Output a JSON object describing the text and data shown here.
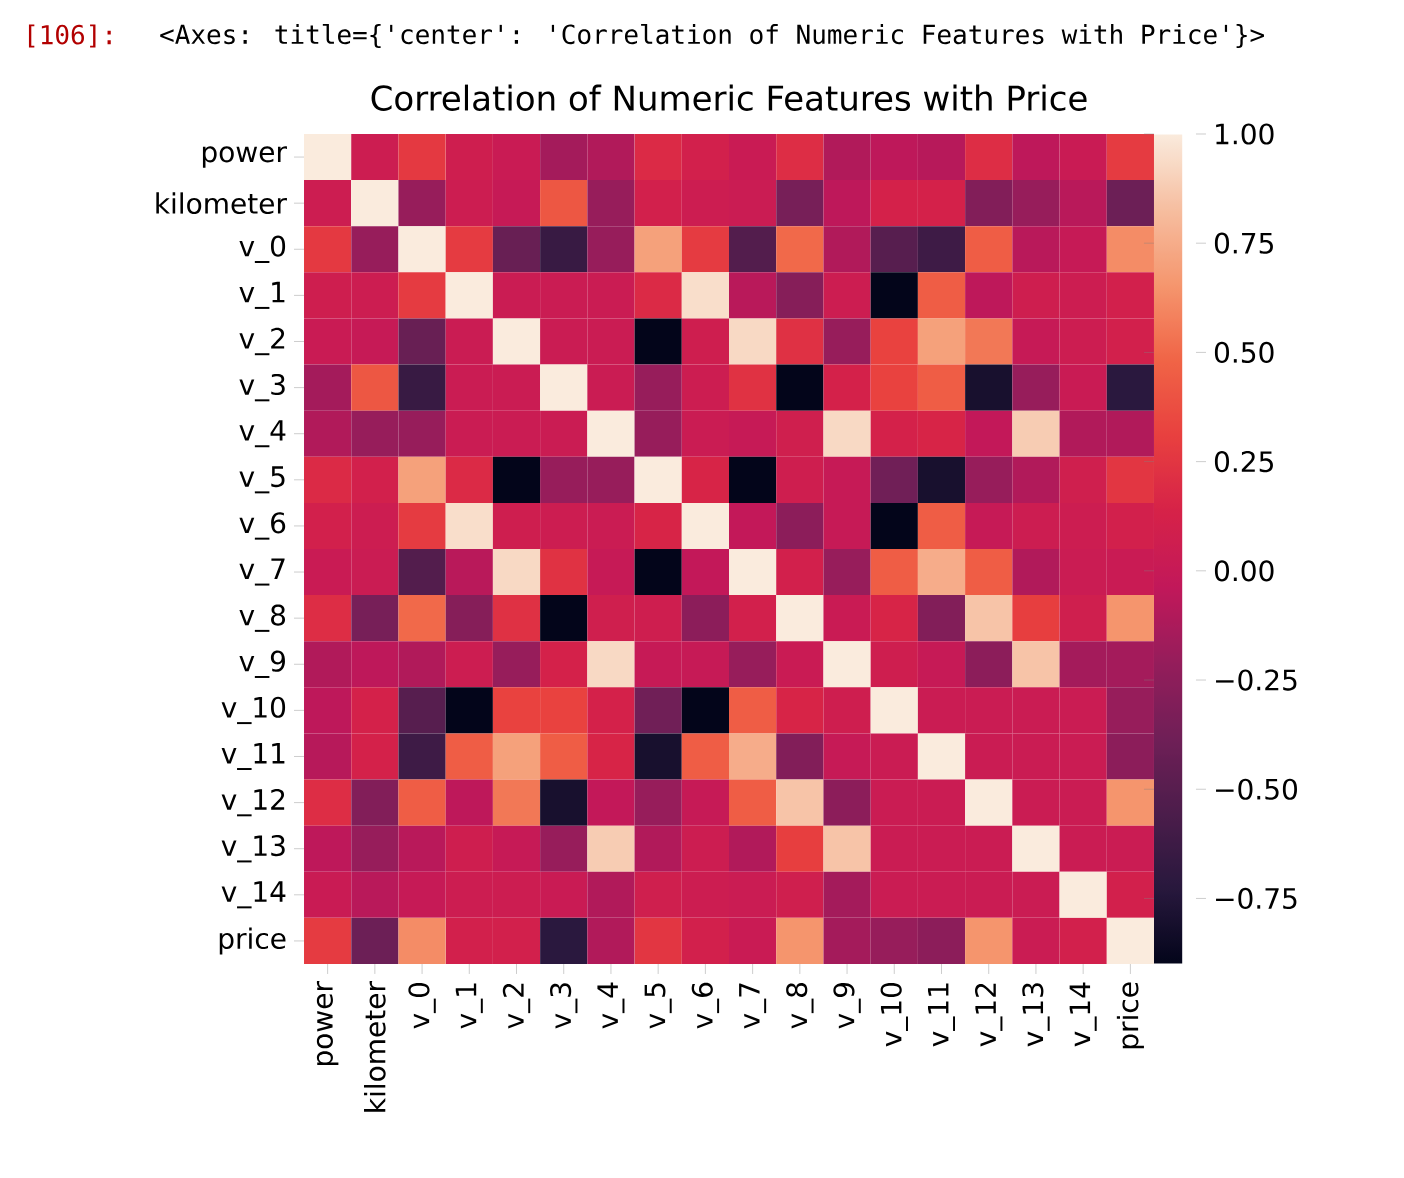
{
  "chart_data": {
    "type": "heatmap",
    "title": "Correlation of Numeric Features with Price",
    "annotations": [
      "[106]:",
      "<Axes: title={'center': 'Correlation of Numeric Features with Price'}>"
    ],
    "categories": [
      "power",
      "kilometer",
      "v_0",
      "v_1",
      "v_2",
      "v_3",
      "v_4",
      "v_5",
      "v_6",
      "v_7",
      "v_8",
      "v_9",
      "v_10",
      "v_11",
      "v_12",
      "v_13",
      "v_14",
      "price"
    ],
    "y_categories": [
      "power",
      "kilometer",
      "v_0",
      "v_1",
      "v_2",
      "v_3",
      "v_4",
      "v_5",
      "v_6",
      "v_7",
      "v_8",
      "v_9",
      "v_10",
      "v_11",
      "v_12",
      "v_13",
      "v_14",
      "price"
    ],
    "cells": [
      [
        1,
        0.05,
        0.27,
        0.07,
        0.02,
        -0.15,
        -0.1,
        0.18,
        0.1,
        0.02,
        0.2,
        -0.1,
        -0.05,
        -0.08,
        0.2,
        -0.05,
        0.02,
        0.28
      ],
      [
        0.05,
        1,
        -0.2,
        0.05,
        0.0,
        0.42,
        -0.2,
        0.1,
        0.05,
        0.03,
        -0.35,
        -0.05,
        0.12,
        0.12,
        -0.3,
        -0.2,
        -0.07,
        -0.4
      ],
      [
        0.27,
        -0.2,
        1,
        0.28,
        -0.42,
        -0.65,
        -0.2,
        0.7,
        0.28,
        -0.52,
        0.5,
        -0.1,
        -0.5,
        -0.62,
        0.45,
        -0.07,
        0.0,
        0.62
      ],
      [
        0.07,
        0.05,
        0.28,
        1,
        0.03,
        0.03,
        0.03,
        0.18,
        0.95,
        -0.07,
        -0.28,
        0.05,
        -0.9,
        0.45,
        -0.05,
        0.07,
        0.05,
        0.1
      ],
      [
        0.02,
        0.0,
        -0.42,
        0.03,
        1,
        0.03,
        0.03,
        -0.9,
        0.07,
        0.93,
        0.22,
        -0.2,
        0.32,
        0.7,
        0.55,
        0.0,
        0.05,
        0.1
      ],
      [
        -0.15,
        0.42,
        -0.65,
        0.03,
        0.03,
        1,
        0.03,
        -0.2,
        0.05,
        0.23,
        -0.9,
        0.12,
        0.32,
        0.45,
        -0.8,
        -0.2,
        0.02,
        -0.72
      ],
      [
        -0.1,
        -0.2,
        -0.2,
        0.03,
        0.03,
        0.03,
        1,
        -0.2,
        0.03,
        0.0,
        0.08,
        0.93,
        0.12,
        0.15,
        -0.03,
        0.88,
        -0.1,
        -0.1
      ],
      [
        0.18,
        0.1,
        0.7,
        0.18,
        -0.9,
        -0.2,
        -0.2,
        1,
        0.15,
        -0.9,
        0.07,
        0.0,
        -0.38,
        -0.8,
        -0.2,
        -0.1,
        0.08,
        0.25
      ],
      [
        0.1,
        0.05,
        0.28,
        0.95,
        0.07,
        0.05,
        0.03,
        0.15,
        1,
        -0.03,
        -0.25,
        0.0,
        -0.9,
        0.45,
        0.0,
        0.05,
        0.05,
        0.1
      ],
      [
        0.02,
        0.03,
        -0.52,
        -0.07,
        0.93,
        0.23,
        0.0,
        -0.9,
        -0.03,
        1,
        0.1,
        -0.2,
        0.45,
        0.75,
        0.45,
        -0.1,
        0.03,
        0.02
      ],
      [
        0.2,
        -0.35,
        0.5,
        -0.28,
        0.22,
        -0.9,
        0.08,
        0.07,
        -0.25,
        0.1,
        1,
        0.02,
        0.15,
        -0.3,
        0.85,
        0.3,
        0.08,
        0.65
      ],
      [
        -0.1,
        -0.05,
        -0.1,
        0.05,
        -0.2,
        0.12,
        0.93,
        0.0,
        0.0,
        -0.2,
        0.02,
        1,
        0.07,
        0.0,
        -0.25,
        0.85,
        -0.15,
        -0.15
      ],
      [
        -0.05,
        0.12,
        -0.5,
        -0.9,
        0.32,
        0.32,
        0.12,
        -0.38,
        -0.9,
        0.45,
        0.15,
        0.07,
        1,
        0.03,
        0.03,
        0.03,
        0.03,
        -0.2
      ],
      [
        -0.08,
        0.12,
        -0.62,
        0.45,
        0.7,
        0.45,
        0.15,
        -0.8,
        0.45,
        0.75,
        -0.3,
        0.0,
        0.03,
        1,
        0.03,
        0.03,
        0.03,
        -0.25
      ],
      [
        0.2,
        -0.3,
        0.45,
        -0.05,
        0.55,
        -0.8,
        -0.03,
        -0.2,
        0.0,
        0.45,
        0.85,
        -0.25,
        0.03,
        0.03,
        1,
        0.03,
        0.03,
        0.65
      ],
      [
        -0.05,
        -0.2,
        -0.07,
        0.07,
        0.0,
        -0.2,
        0.88,
        -0.1,
        0.05,
        -0.1,
        0.3,
        0.85,
        0.03,
        0.03,
        0.03,
        1,
        0.03,
        0.03
      ],
      [
        0.02,
        -0.07,
        0.0,
        0.05,
        0.05,
        0.02,
        -0.1,
        0.08,
        0.05,
        0.03,
        0.08,
        -0.15,
        0.03,
        0.03,
        0.03,
        0.03,
        1,
        0.1
      ],
      [
        0.28,
        -0.4,
        0.62,
        0.1,
        0.1,
        -0.72,
        -0.1,
        0.25,
        0.1,
        0.02,
        0.65,
        -0.15,
        -0.2,
        -0.25,
        0.65,
        0.03,
        0.1,
        1
      ]
    ],
    "clim": [
      -0.9,
      1.0
    ],
    "cticks": [
      {
        "value": -0.75,
        "label": "−0.75"
      },
      {
        "value": -0.5,
        "label": "−0.50"
      },
      {
        "value": -0.25,
        "label": "−0.25"
      },
      {
        "value": 0,
        "label": "0.00"
      },
      {
        "value": 0.25,
        "label": "0.25"
      },
      {
        "value": 0.5,
        "label": "0.50"
      },
      {
        "value": 0.75,
        "label": "0.75"
      },
      {
        "value": 1.0,
        "label": "1.00"
      }
    ]
  }
}
